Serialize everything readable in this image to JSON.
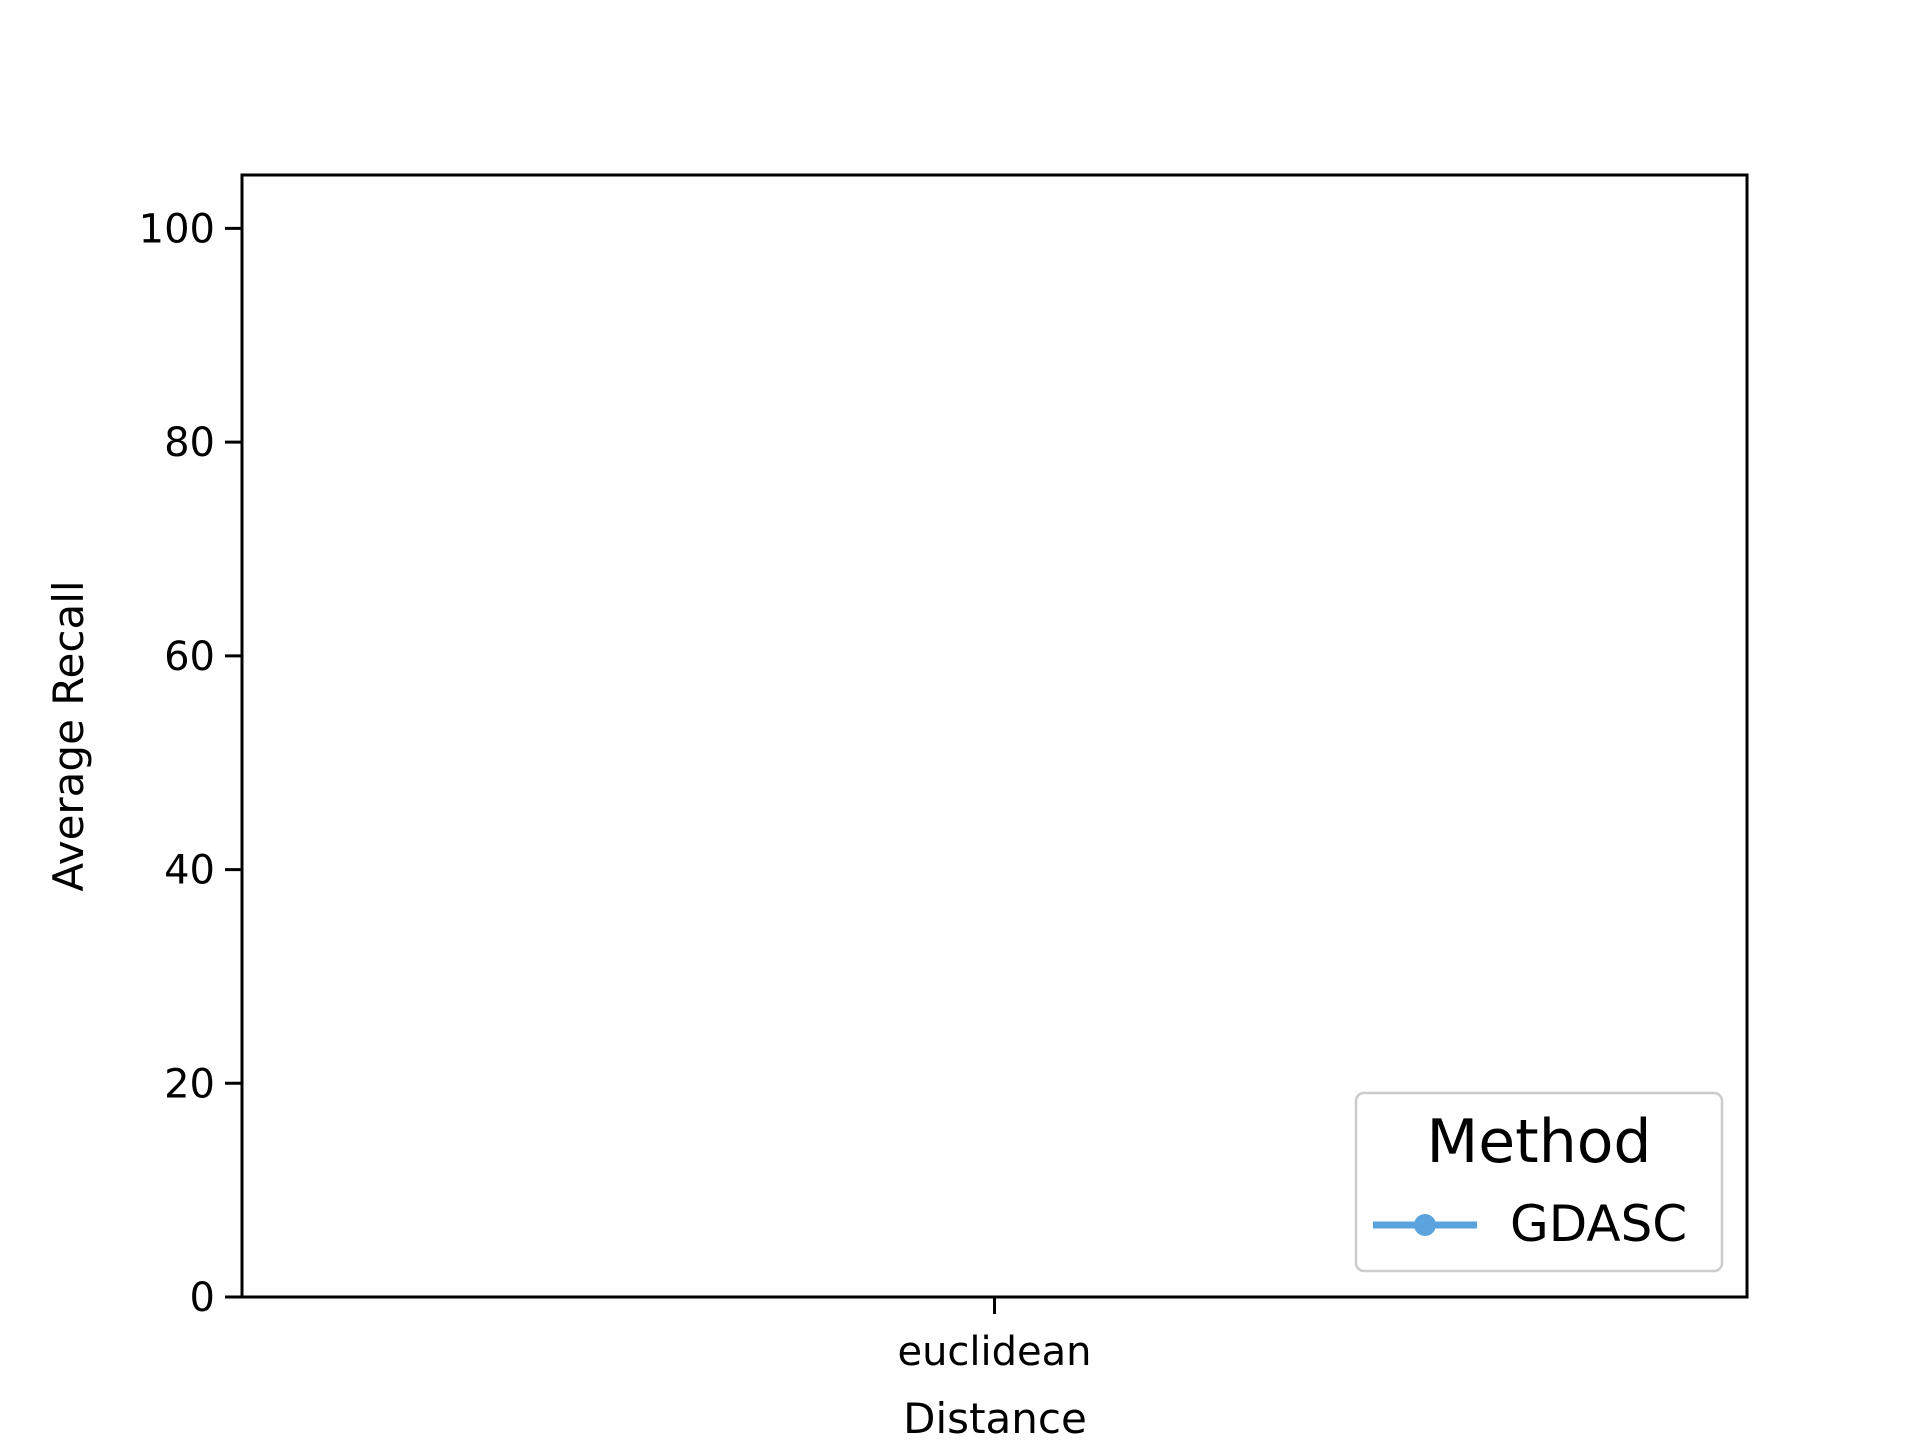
{
  "chart_data": {
    "type": "line",
    "xlabel": "Distance",
    "ylabel": "Average Recall",
    "categories": [
      "euclidean"
    ],
    "ylim": [
      0,
      105
    ],
    "yticks": [
      0,
      20,
      40,
      60,
      80,
      100
    ],
    "grid": false,
    "legend": {
      "title": "Method",
      "placement": "lower-right"
    },
    "series": [
      {
        "name": "GDASC",
        "color": "#5ba3dc",
        "values": [
          null
        ],
        "marker": "circle"
      }
    ]
  }
}
